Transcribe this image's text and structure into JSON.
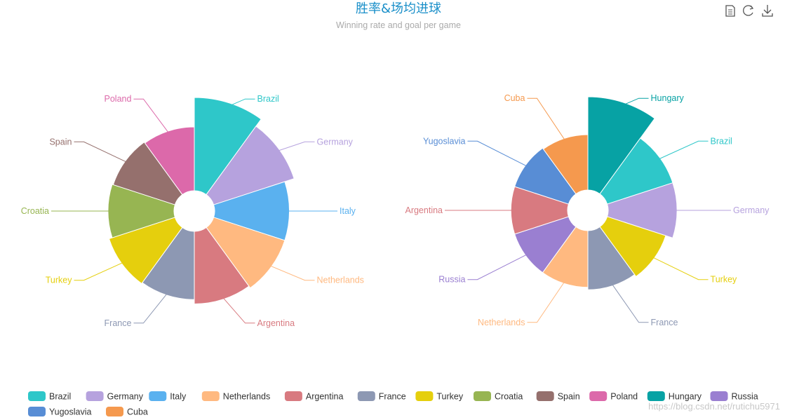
{
  "title": "胜率&场均进球",
  "subtitle": "Winning rate and goal per game",
  "watermark": "https://blog.csdn.net/rutichu5971",
  "toolbox": [
    {
      "name": "data-view-icon",
      "icon": "document"
    },
    {
      "name": "restore-icon",
      "icon": "refresh"
    },
    {
      "name": "save-image-icon",
      "icon": "download"
    }
  ],
  "colors": {
    "title": "#1a8fc9",
    "subtitle": "#aaaaaa",
    "Brazil": "#2ec7c9",
    "Germany": "#b6a2de",
    "Italy": "#5ab1ef",
    "Netherlands": "#ffb980",
    "Argentina": "#d87a80",
    "France": "#8d98b3",
    "Turkey": "#e5cf0d",
    "Croatia": "#97b552",
    "Spain": "#95706d",
    "Poland": "#dc69aa",
    "Hungary": "#07a2a4",
    "Russia": "#9a7fd1",
    "Yugoslavia": "#588dd5",
    "Cuba": "#f5994e"
  },
  "legend": [
    "Brazil",
    "Germany",
    "Italy",
    "Netherlands",
    "Argentina",
    "France",
    "Turkey",
    "Croatia",
    "Spain",
    "Poland",
    "Hungary",
    "Russia",
    "Yugoslavia",
    "Cuba"
  ],
  "chart_data": [
    {
      "type": "pie",
      "roseType": "radius",
      "series_note": "winning rate",
      "slices": [
        {
          "name": "Brazil",
          "value": 100
        },
        {
          "name": "Germany",
          "value": 92
        },
        {
          "name": "Italy",
          "value": 83
        },
        {
          "name": "Netherlands",
          "value": 83
        },
        {
          "name": "Argentina",
          "value": 81
        },
        {
          "name": "France",
          "value": 77
        },
        {
          "name": "Turkey",
          "value": 78
        },
        {
          "name": "Croatia",
          "value": 75
        },
        {
          "name": "Spain",
          "value": 74
        },
        {
          "name": "Poland",
          "value": 73
        }
      ]
    },
    {
      "type": "pie",
      "roseType": "radius",
      "series_note": "goals per game",
      "slices": [
        {
          "name": "Hungary",
          "value": 100
        },
        {
          "name": "Brazil",
          "value": 80
        },
        {
          "name": "Germany",
          "value": 80
        },
        {
          "name": "Turkey",
          "value": 74
        },
        {
          "name": "France",
          "value": 72
        },
        {
          "name": "Netherlands",
          "value": 70
        },
        {
          "name": "Russia",
          "value": 70
        },
        {
          "name": "Argentina",
          "value": 70
        },
        {
          "name": "Yugoslavia",
          "value": 70
        },
        {
          "name": "Cuba",
          "value": 69
        }
      ]
    }
  ]
}
